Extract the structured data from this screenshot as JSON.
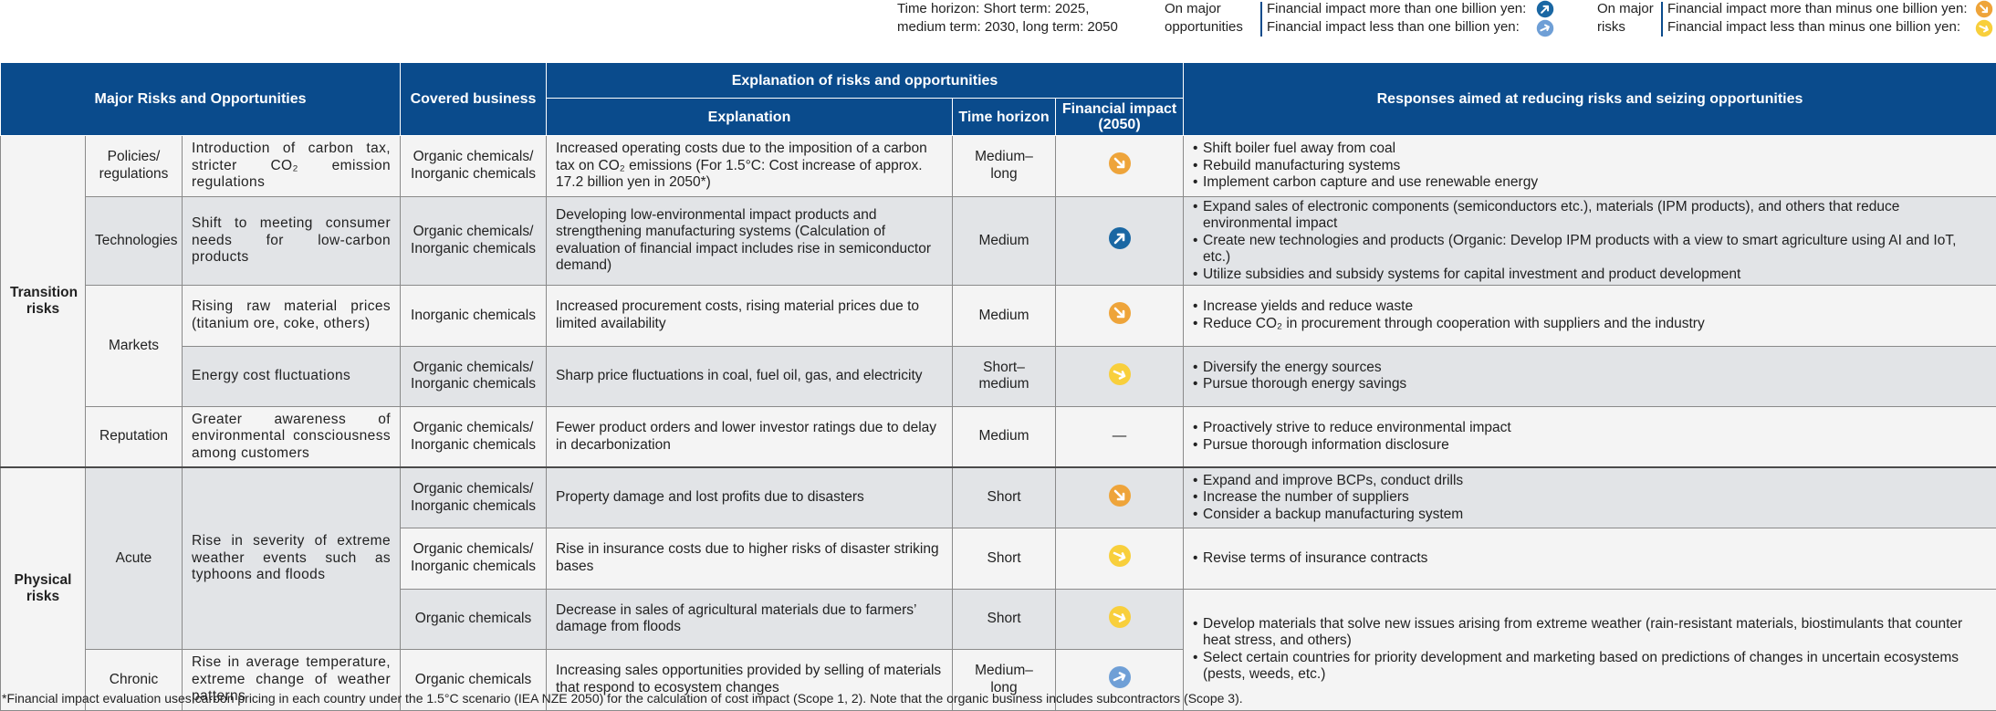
{
  "legend": {
    "time_horizon": [
      "Time horizon: Short term: 2025,",
      "medium term: 2030, long term: 2050"
    ],
    "opportunities": {
      "label": [
        "On major",
        "opportunities"
      ],
      "more": "Financial impact more than one billion yen:",
      "less": "Financial impact less than one billion yen:"
    },
    "risks": {
      "label": [
        "On major",
        "risks"
      ],
      "more": "Financial impact more than minus one billion yen:",
      "less": "Financial impact less than minus one billion yen:"
    }
  },
  "table": {
    "header": {
      "major": "Major Risks and Opportunities",
      "covered": "Covered business",
      "explanation_group": "Explanation of risks and opportunities",
      "explanation": "Explanation",
      "time_horizon": "Time horizon",
      "financial_impact": "Financial impact (2050)",
      "responses": "Responses aimed at reducing risks and seizing opportunities"
    },
    "sections": [
      "Transition risks",
      "Physical risks"
    ],
    "rows": [
      {
        "category": "Policies/ regulations",
        "risk": "Introduction of carbon tax, stricter CO₂ emission regulations",
        "business": "Organic chemicals/ Inorganic chemicals",
        "explanation": "Increased operating costs due to the imposition of a carbon tax on CO₂ emissions (For 1.5°C: Cost increase of approx. 17.2 billion yen in 2050*)",
        "horizon": "Medium–long",
        "responses": [
          "Shift boiler fuel away from coal",
          "Rebuild manufacturing systems",
          "Implement carbon capture and use renewable energy"
        ]
      },
      {
        "category": "Technologies",
        "risk": "Shift to meeting consumer needs for low-carbon products",
        "business": "Organic chemicals/ Inorganic chemicals",
        "explanation": "Developing low-environmental impact products and strengthening manufacturing systems (Calculation of evaluation of financial impact includes rise in semiconductor demand)",
        "horizon": "Medium",
        "responses": [
          "Expand sales of electronic components (semiconductors etc.), materials (IPM products), and others that reduce environmental impact",
          "Create new technologies and products (Organic: Develop IPM products with a view to smart agriculture using AI and IoT, etc.)",
          "Utilize subsidies and subsidy systems for capital investment and product development"
        ]
      },
      {
        "category": "Markets",
        "risk": "Rising raw material prices (titanium ore, coke, others)",
        "business": "Inorganic chemicals",
        "explanation": "Increased procurement costs, rising material prices due to limited availability",
        "horizon": "Medium",
        "responses": [
          "Increase yields and reduce waste",
          "Reduce CO₂ in procurement through cooperation with suppliers and the industry"
        ]
      },
      {
        "risk": "Energy cost fluctuations",
        "business": "Organic chemicals/ Inorganic chemicals",
        "explanation": "Sharp price fluctuations in coal, fuel oil, gas, and electricity",
        "horizon": "Short–medium",
        "responses": [
          "Diversify the energy sources",
          "Pursue thorough energy savings"
        ]
      },
      {
        "category": "Reputation",
        "risk": "Greater awareness of environmental consciousness among customers",
        "business": "Organic chemicals/ Inorganic chemicals",
        "explanation": "Fewer product orders and lower investor ratings due to delay in decarbonization",
        "horizon": "Medium",
        "impact": "—",
        "responses": [
          "Proactively strive to reduce environmental impact",
          "Pursue thorough information disclosure"
        ]
      },
      {
        "category": "Acute",
        "risk": "Rise in severity of extreme weather events such as typhoons and floods",
        "business": "Organic chemicals/ Inorganic chemicals",
        "explanation": "Property damage and lost profits due to disasters",
        "horizon": "Short",
        "responses": [
          "Expand and improve BCPs, conduct drills",
          "Increase the number of suppliers",
          "Consider a backup manufacturing system"
        ]
      },
      {
        "business": "Organic chemicals/ Inorganic chemicals",
        "explanation": "Rise in insurance costs due to higher risks of disaster striking bases",
        "horizon": "Short",
        "responses": [
          "Revise terms of insurance contracts"
        ]
      },
      {
        "business": "Organic chemicals",
        "explanation": "Decrease in sales of agricultural materials due to farmers’ damage from floods",
        "horizon": "Short",
        "responses": [
          "Develop materials that solve new issues arising from extreme weather (rain-resistant materials, biostimulants that counter heat stress, and others)",
          "Select certain countries for priority development and marketing based on predictions of changes in uncertain ecosystems (pests, weeds, etc.)"
        ]
      },
      {
        "category": "Chronic",
        "risk": "Rise in average temperature, extreme change of weather patterns",
        "business": "Organic chemicals",
        "explanation": "Increasing sales opportunities provided by selling of materials that respond to ecosystem changes",
        "horizon": "Medium–long"
      }
    ]
  },
  "footnote": "*Financial impact evaluation uses carbon pricing in each country under the 1.5°C scenario (IEA NZE 2050) for the calculation of cost impact (Scope 1, 2). Note that the organic business includes subcontractors (Scope 3)."
}
